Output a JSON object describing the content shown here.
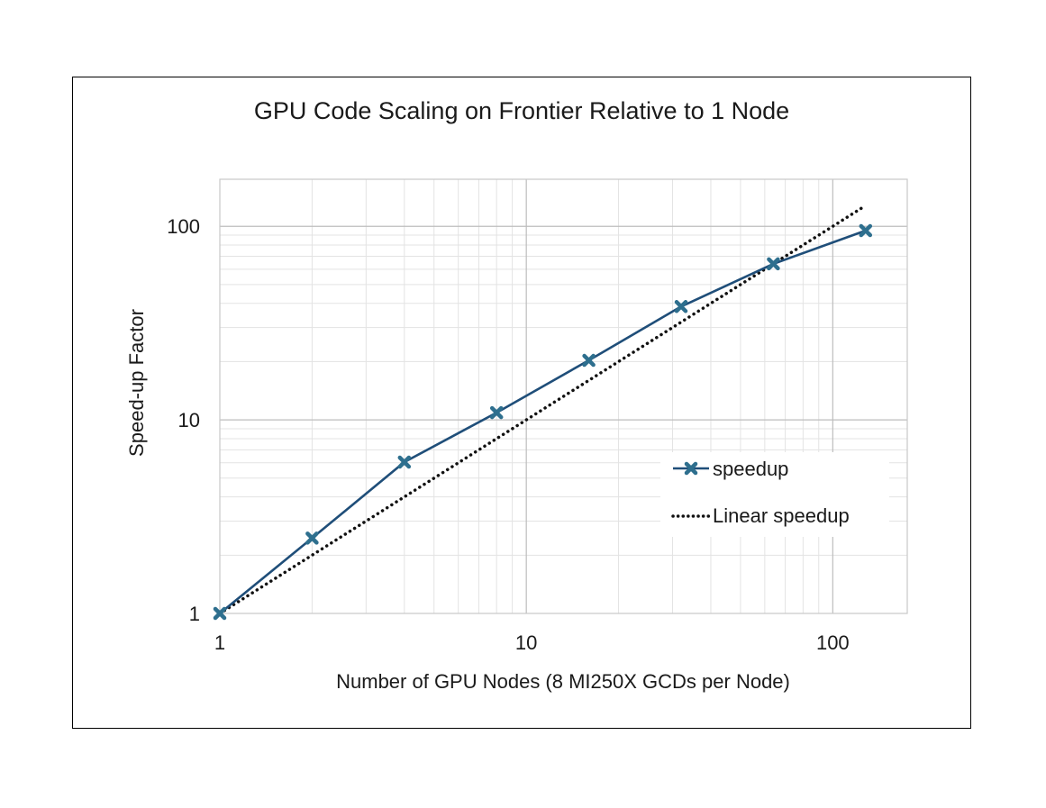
{
  "chart_data": {
    "type": "line",
    "title": "GPU Code Scaling on Frontier Relative to 1 Node",
    "xlabel": "Number of GPU Nodes (8 MI250X GCDs per Node)",
    "ylabel": "Speed-up Factor",
    "x_scale": "log",
    "y_scale": "log",
    "xlim": [
      1,
      175
    ],
    "ylim": [
      1,
      175
    ],
    "x_ticks": [
      {
        "value": 1,
        "label": "1"
      },
      {
        "value": 10,
        "label": "10"
      },
      {
        "value": 100,
        "label": "100"
      }
    ],
    "y_ticks": [
      {
        "value": 1,
        "label": "1"
      },
      {
        "value": 10,
        "label": "10"
      },
      {
        "value": 100,
        "label": "100"
      }
    ],
    "grid": true,
    "legend_position": "lower-right",
    "series": [
      {
        "name": "speedup",
        "style": "solid",
        "marker": "x",
        "color": "#1f4e79",
        "marker_color": "#2e6f8e",
        "x": [
          1,
          2,
          4,
          8,
          16,
          32,
          64,
          128
        ],
        "y": [
          1,
          2.45,
          6.05,
          10.9,
          20.3,
          38.5,
          64,
          95
        ]
      },
      {
        "name": "Linear speedup",
        "style": "dotted",
        "color": "#111111",
        "x": [
          1,
          128
        ],
        "y": [
          1,
          128
        ]
      }
    ]
  }
}
